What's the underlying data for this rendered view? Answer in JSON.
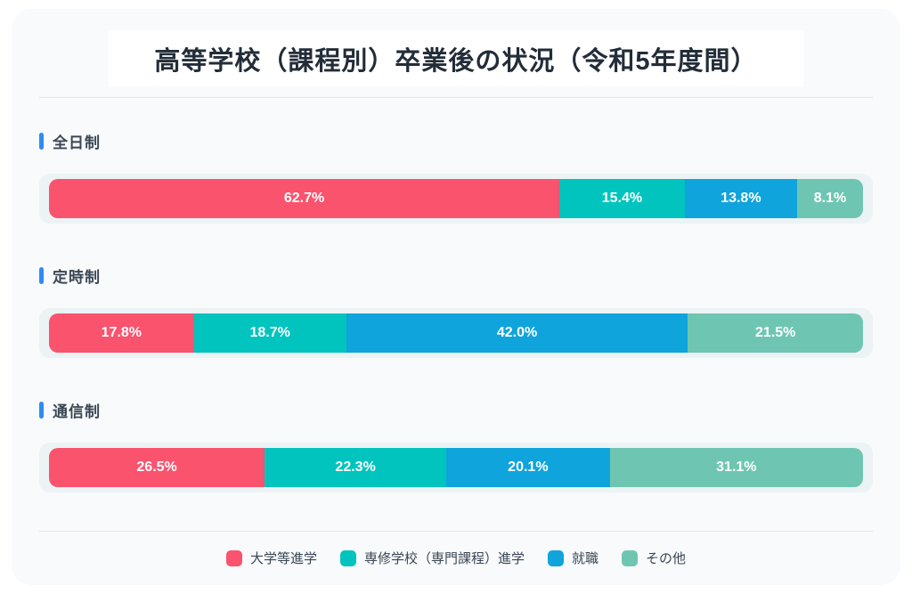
{
  "title": "高等学校（課程別）卒業後の状況（令和5年度間）",
  "colors": {
    "accent_blue": "#2d8cef",
    "card_bg": "#f8fafc",
    "band_bg": "#ecf3f5",
    "divider": "#d7e7e9",
    "series_pink": "#f9536e",
    "series_teal": "#00c4bd",
    "series_blue": "#0fa4dc",
    "series_green": "#6ec6b2"
  },
  "sections": [
    {
      "label": "全日制",
      "segments": [
        {
          "name": "大学等進学",
          "value": 62.7,
          "label": "62.7%"
        },
        {
          "name": "専修学校（専門課程）進学",
          "value": 15.4,
          "label": "15.4%"
        },
        {
          "name": "就職",
          "value": 13.8,
          "label": "13.8%"
        },
        {
          "name": "その他",
          "value": 8.1,
          "label": "8.1%"
        }
      ]
    },
    {
      "label": "定時制",
      "segments": [
        {
          "name": "大学等進学",
          "value": 17.8,
          "label": "17.8%"
        },
        {
          "name": "専修学校（専門課程）進学",
          "value": 18.7,
          "label": "18.7%"
        },
        {
          "name": "就職",
          "value": 42.0,
          "label": "42.0%"
        },
        {
          "name": "その他",
          "value": 21.5,
          "label": "21.5%"
        }
      ]
    },
    {
      "label": "通信制",
      "segments": [
        {
          "name": "大学等進学",
          "value": 26.5,
          "label": "26.5%"
        },
        {
          "name": "専修学校（専門課程）進学",
          "value": 22.3,
          "label": "22.3%"
        },
        {
          "name": "就職",
          "value": 20.1,
          "label": "20.1%"
        },
        {
          "name": "その他",
          "value": 31.1,
          "label": "31.1%"
        }
      ]
    }
  ],
  "legend": [
    {
      "label": "大学等進学",
      "color": "#f9536e"
    },
    {
      "label": "専修学校（専門課程）進学",
      "color": "#00c4bd"
    },
    {
      "label": "就職",
      "color": "#0fa4dc"
    },
    {
      "label": "その他",
      "color": "#6ec6b2"
    }
  ],
  "chart_data": {
    "type": "bar",
    "orientation": "horizontal",
    "stacked": true,
    "title": "高等学校（課程別）卒業後の状況（令和5年度間）",
    "categories": [
      "全日制",
      "定時制",
      "通信制"
    ],
    "series": [
      {
        "name": "大学等進学",
        "color": "#f9536e",
        "values": [
          62.7,
          17.8,
          26.5
        ]
      },
      {
        "name": "専修学校（専門課程）進学",
        "color": "#00c4bd",
        "values": [
          15.4,
          18.7,
          22.3
        ]
      },
      {
        "name": "就職",
        "color": "#0fa4dc",
        "values": [
          13.8,
          42.0,
          20.1
        ]
      },
      {
        "name": "その他",
        "color": "#6ec6b2",
        "values": [
          8.1,
          21.5,
          31.1
        ]
      }
    ],
    "unit": "%",
    "xlim": [
      0,
      100
    ],
    "grid": false,
    "legend_position": "bottom",
    "data_labels": "inside-segment"
  }
}
